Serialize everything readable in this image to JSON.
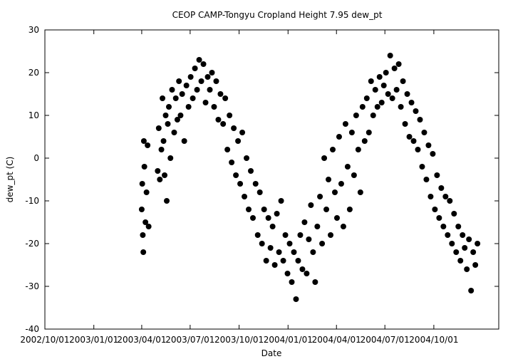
{
  "chart_data": {
    "type": "scatter",
    "title": "CEOP CAMP-Tongyu Cropland Height 7.95 dew_pt",
    "xlabel": "Date",
    "ylabel": "dew_pt (C)",
    "xlim": [
      "2002-10-01",
      "2005-01-31"
    ],
    "ylim": [
      -40,
      30
    ],
    "xticks": [
      "2002/10/01",
      "2003/01/01",
      "2003/04/01",
      "2003/07/01",
      "2003/10/01",
      "2004/01/01",
      "2004/04/01",
      "2004/07/01",
      "2004/10/01"
    ],
    "yticks": [
      -40,
      -30,
      -20,
      -10,
      0,
      10,
      20,
      30
    ],
    "grid": false,
    "legend": "none",
    "marker_color": "#000000",
    "series": [
      {
        "points": [
          {
            "x": "2003-04-01",
            "y": -12
          },
          {
            "x": "2003-04-02",
            "y": -6
          },
          {
            "x": "2003-04-03",
            "y": -18
          },
          {
            "x": "2003-04-04",
            "y": -22
          },
          {
            "x": "2003-04-05",
            "y": 4
          },
          {
            "x": "2003-04-06",
            "y": -2
          },
          {
            "x": "2003-04-08",
            "y": -15
          },
          {
            "x": "2003-04-10",
            "y": -8
          },
          {
            "x": "2003-04-12",
            "y": 3
          },
          {
            "x": "2003-04-14",
            "y": -16
          },
          {
            "x": "2003-05-01",
            "y": -3
          },
          {
            "x": "2003-05-03",
            "y": 7
          },
          {
            "x": "2003-05-05",
            "y": -5
          },
          {
            "x": "2003-05-08",
            "y": 2
          },
          {
            "x": "2003-05-10",
            "y": 14
          },
          {
            "x": "2003-05-12",
            "y": 4
          },
          {
            "x": "2003-05-14",
            "y": -4
          },
          {
            "x": "2003-05-16",
            "y": 10
          },
          {
            "x": "2003-05-18",
            "y": -10
          },
          {
            "x": "2003-05-20",
            "y": 8
          },
          {
            "x": "2003-05-22",
            "y": 12
          },
          {
            "x": "2003-05-25",
            "y": 0
          },
          {
            "x": "2003-05-28",
            "y": 16
          },
          {
            "x": "2003-06-01",
            "y": 6
          },
          {
            "x": "2003-06-04",
            "y": 14
          },
          {
            "x": "2003-06-07",
            "y": 9
          },
          {
            "x": "2003-06-10",
            "y": 18
          },
          {
            "x": "2003-06-13",
            "y": 10
          },
          {
            "x": "2003-06-16",
            "y": 15
          },
          {
            "x": "2003-06-20",
            "y": 4
          },
          {
            "x": "2003-06-24",
            "y": 17
          },
          {
            "x": "2003-06-28",
            "y": 12
          },
          {
            "x": "2003-07-02",
            "y": 19
          },
          {
            "x": "2003-07-06",
            "y": 14
          },
          {
            "x": "2003-07-10",
            "y": 21
          },
          {
            "x": "2003-07-14",
            "y": 16
          },
          {
            "x": "2003-07-18",
            "y": 23
          },
          {
            "x": "2003-07-22",
            "y": 18
          },
          {
            "x": "2003-07-26",
            "y": 22
          },
          {
            "x": "2003-07-30",
            "y": 13
          },
          {
            "x": "2003-08-03",
            "y": 19
          },
          {
            "x": "2003-08-07",
            "y": 16
          },
          {
            "x": "2003-08-11",
            "y": 20
          },
          {
            "x": "2003-08-15",
            "y": 12
          },
          {
            "x": "2003-08-19",
            "y": 18
          },
          {
            "x": "2003-08-23",
            "y": 9
          },
          {
            "x": "2003-08-27",
            "y": 15
          },
          {
            "x": "2003-09-01",
            "y": 8
          },
          {
            "x": "2003-09-05",
            "y": 14
          },
          {
            "x": "2003-09-09",
            "y": 2
          },
          {
            "x": "2003-09-13",
            "y": 10
          },
          {
            "x": "2003-09-17",
            "y": -1
          },
          {
            "x": "2003-09-21",
            "y": 7
          },
          {
            "x": "2003-09-25",
            "y": -4
          },
          {
            "x": "2003-09-29",
            "y": 4
          },
          {
            "x": "2003-10-03",
            "y": -6
          },
          {
            "x": "2003-10-07",
            "y": 6
          },
          {
            "x": "2003-10-11",
            "y": -9
          },
          {
            "x": "2003-10-15",
            "y": 0
          },
          {
            "x": "2003-10-19",
            "y": -12
          },
          {
            "x": "2003-10-23",
            "y": -3
          },
          {
            "x": "2003-10-27",
            "y": -14
          },
          {
            "x": "2003-11-01",
            "y": -6
          },
          {
            "x": "2003-11-05",
            "y": -18
          },
          {
            "x": "2003-11-09",
            "y": -8
          },
          {
            "x": "2003-11-13",
            "y": -20
          },
          {
            "x": "2003-11-17",
            "y": -12
          },
          {
            "x": "2003-11-21",
            "y": -24
          },
          {
            "x": "2003-11-25",
            "y": -14
          },
          {
            "x": "2003-11-29",
            "y": -21
          },
          {
            "x": "2003-12-03",
            "y": -16
          },
          {
            "x": "2003-12-07",
            "y": -25
          },
          {
            "x": "2003-12-11",
            "y": -13
          },
          {
            "x": "2003-12-15",
            "y": -22
          },
          {
            "x": "2003-12-19",
            "y": -10
          },
          {
            "x": "2003-12-23",
            "y": -24
          },
          {
            "x": "2003-12-27",
            "y": -18
          },
          {
            "x": "2003-12-31",
            "y": -27
          },
          {
            "x": "2004-01-04",
            "y": -20
          },
          {
            "x": "2004-01-08",
            "y": -29
          },
          {
            "x": "2004-01-12",
            "y": -22
          },
          {
            "x": "2004-01-16",
            "y": -33
          },
          {
            "x": "2004-01-20",
            "y": -24
          },
          {
            "x": "2004-01-24",
            "y": -18
          },
          {
            "x": "2004-01-28",
            "y": -26
          },
          {
            "x": "2004-02-01",
            "y": -15
          },
          {
            "x": "2004-02-05",
            "y": -27
          },
          {
            "x": "2004-02-09",
            "y": -19
          },
          {
            "x": "2004-02-13",
            "y": -11
          },
          {
            "x": "2004-02-17",
            "y": -22
          },
          {
            "x": "2004-02-21",
            "y": -29
          },
          {
            "x": "2004-02-25",
            "y": -16
          },
          {
            "x": "2004-03-01",
            "y": -9
          },
          {
            "x": "2004-03-05",
            "y": -20
          },
          {
            "x": "2004-03-09",
            "y": 0
          },
          {
            "x": "2004-03-13",
            "y": -12
          },
          {
            "x": "2004-03-17",
            "y": -5
          },
          {
            "x": "2004-03-21",
            "y": -18
          },
          {
            "x": "2004-03-25",
            "y": 2
          },
          {
            "x": "2004-03-29",
            "y": -8
          },
          {
            "x": "2004-04-02",
            "y": -14
          },
          {
            "x": "2004-04-06",
            "y": 5
          },
          {
            "x": "2004-04-10",
            "y": -6
          },
          {
            "x": "2004-04-14",
            "y": -16
          },
          {
            "x": "2004-04-18",
            "y": 8
          },
          {
            "x": "2004-04-22",
            "y": -2
          },
          {
            "x": "2004-04-26",
            "y": -12
          },
          {
            "x": "2004-04-30",
            "y": 6
          },
          {
            "x": "2004-05-04",
            "y": -4
          },
          {
            "x": "2004-05-08",
            "y": 10
          },
          {
            "x": "2004-05-12",
            "y": 2
          },
          {
            "x": "2004-05-16",
            "y": -8
          },
          {
            "x": "2004-05-20",
            "y": 12
          },
          {
            "x": "2004-05-24",
            "y": 4
          },
          {
            "x": "2004-05-28",
            "y": 14
          },
          {
            "x": "2004-06-01",
            "y": 6
          },
          {
            "x": "2004-06-05",
            "y": 18
          },
          {
            "x": "2004-06-09",
            "y": 10
          },
          {
            "x": "2004-06-13",
            "y": 16
          },
          {
            "x": "2004-06-17",
            "y": 12
          },
          {
            "x": "2004-06-21",
            "y": 19
          },
          {
            "x": "2004-06-25",
            "y": 13
          },
          {
            "x": "2004-06-29",
            "y": 17
          },
          {
            "x": "2004-07-03",
            "y": 20
          },
          {
            "x": "2004-07-07",
            "y": 15
          },
          {
            "x": "2004-07-11",
            "y": 24
          },
          {
            "x": "2004-07-15",
            "y": 14
          },
          {
            "x": "2004-07-19",
            "y": 21
          },
          {
            "x": "2004-07-23",
            "y": 16
          },
          {
            "x": "2004-07-27",
            "y": 22
          },
          {
            "x": "2004-07-31",
            "y": 12
          },
          {
            "x": "2004-08-04",
            "y": 18
          },
          {
            "x": "2004-08-08",
            "y": 8
          },
          {
            "x": "2004-08-12",
            "y": 15
          },
          {
            "x": "2004-08-16",
            "y": 5
          },
          {
            "x": "2004-08-20",
            "y": 13
          },
          {
            "x": "2004-08-24",
            "y": 4
          },
          {
            "x": "2004-08-28",
            "y": 11
          },
          {
            "x": "2004-09-01",
            "y": 2
          },
          {
            "x": "2004-09-05",
            "y": 9
          },
          {
            "x": "2004-09-09",
            "y": -2
          },
          {
            "x": "2004-09-13",
            "y": 6
          },
          {
            "x": "2004-09-17",
            "y": -5
          },
          {
            "x": "2004-09-21",
            "y": 3
          },
          {
            "x": "2004-09-25",
            "y": -9
          },
          {
            "x": "2004-09-29",
            "y": 1
          },
          {
            "x": "2004-10-03",
            "y": -12
          },
          {
            "x": "2004-10-07",
            "y": -4
          },
          {
            "x": "2004-10-11",
            "y": -14
          },
          {
            "x": "2004-10-15",
            "y": -7
          },
          {
            "x": "2004-10-19",
            "y": -16
          },
          {
            "x": "2004-10-23",
            "y": -9
          },
          {
            "x": "2004-10-27",
            "y": -18
          },
          {
            "x": "2004-10-31",
            "y": -10
          },
          {
            "x": "2004-11-04",
            "y": -20
          },
          {
            "x": "2004-11-08",
            "y": -13
          },
          {
            "x": "2004-11-12",
            "y": -22
          },
          {
            "x": "2004-11-16",
            "y": -16
          },
          {
            "x": "2004-11-20",
            "y": -24
          },
          {
            "x": "2004-11-24",
            "y": -18
          },
          {
            "x": "2004-11-28",
            "y": -21
          },
          {
            "x": "2004-12-02",
            "y": -26
          },
          {
            "x": "2004-12-06",
            "y": -19
          },
          {
            "x": "2004-12-10",
            "y": -31
          },
          {
            "x": "2004-12-14",
            "y": -22
          },
          {
            "x": "2004-12-18",
            "y": -25
          },
          {
            "x": "2004-12-22",
            "y": -20
          }
        ]
      }
    ]
  }
}
